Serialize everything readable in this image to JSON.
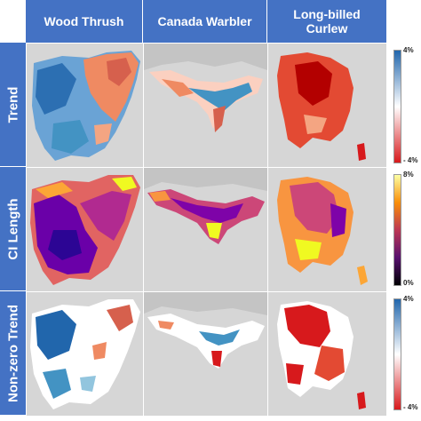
{
  "columns": [
    "Wood Thrush",
    "Canada Warbler",
    "Long-billed Curlew"
  ],
  "columns_line2": [
    "",
    "",
    "Curlew"
  ],
  "rows": [
    "Trend",
    "CI Length",
    "Non-zero Trend"
  ],
  "legends": {
    "trend": {
      "max": "4%",
      "min": "- 4%",
      "colors": [
        "#2166ac",
        "#ffffff",
        "#d7191c"
      ]
    },
    "ci": {
      "max": "8%",
      "min": "0%",
      "colors": [
        "#fcffa4",
        "#f98e09",
        "#bc3754",
        "#57106e",
        "#000004"
      ]
    },
    "nonzero": {
      "max": "4%",
      "min": "- 4%",
      "colors": [
        "#2166ac",
        "#ffffff",
        "#d7191c"
      ]
    }
  },
  "colors": {
    "header_bg": "#4472c4",
    "land": "#dcdcdc",
    "water": "#c8c8c8"
  }
}
